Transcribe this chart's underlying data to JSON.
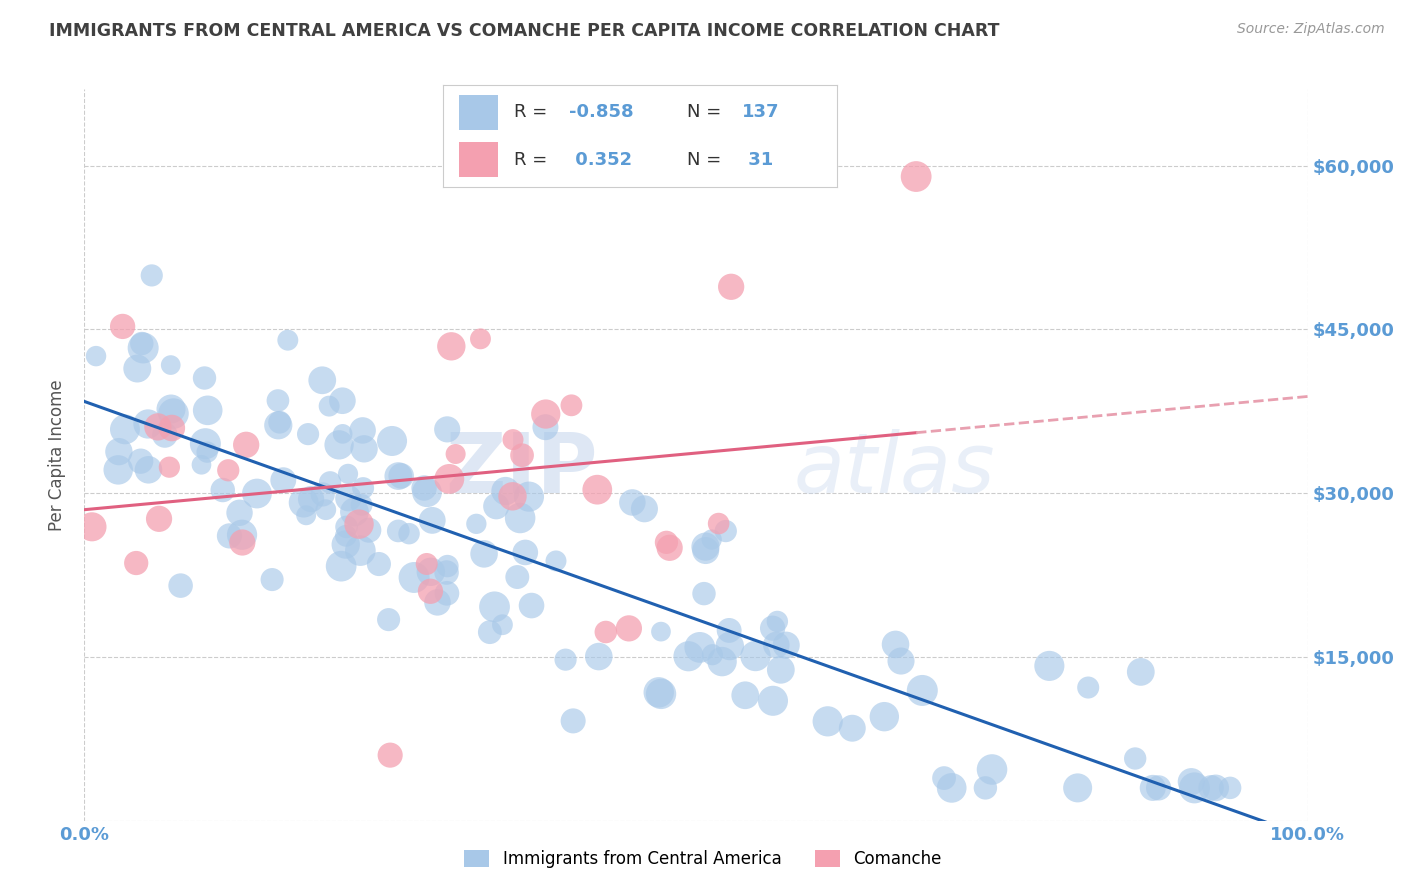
{
  "title": "IMMIGRANTS FROM CENTRAL AMERICA VS COMANCHE PER CAPITA INCOME CORRELATION CHART",
  "source": "Source: ZipAtlas.com",
  "ylabel": "Per Capita Income",
  "xlim": [
    0,
    1.0
  ],
  "ylim": [
    0,
    67000
  ],
  "yticks": [
    0,
    15000,
    30000,
    45000,
    60000
  ],
  "ytick_labels": [
    "",
    "$15,000",
    "$30,000",
    "$45,000",
    "$60,000"
  ],
  "xtick_labels": [
    "0.0%",
    "100.0%"
  ],
  "blue_R": -0.858,
  "blue_N": 137,
  "pink_R": 0.352,
  "pink_N": 31,
  "blue_color": "#a8c8e8",
  "pink_color": "#f4a0b0",
  "blue_line_color": "#2060b0",
  "pink_line_color": "#e06080",
  "pink_dash_color": "#e8a0b0",
  "blue_label": "Immigrants from Central America",
  "pink_label": "Comanche",
  "background_color": "#ffffff",
  "grid_color": "#cccccc",
  "axis_label_color": "#5b9bd5",
  "title_color": "#404040",
  "blue_intercept": 38000,
  "blue_slope": -40000,
  "pink_intercept": 27000,
  "pink_slope": 18000,
  "blue_noise": 5500,
  "pink_noise": 8000
}
